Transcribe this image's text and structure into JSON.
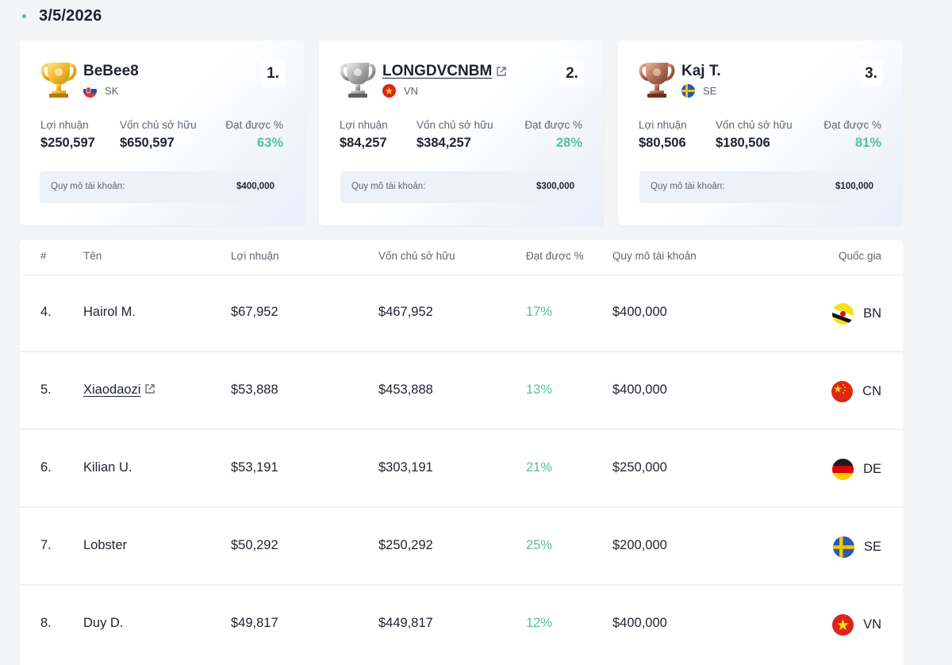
{
  "date": "3/5/2026",
  "podium": [
    {
      "rank": "1.",
      "name": "BeBee8",
      "country": "SK",
      "has_link": false,
      "trophy": "gold-trophy-icon",
      "profit_label": "Lợi nhuận",
      "profit": "$250,597",
      "equity_label": "Vốn chủ sở hữu",
      "equity": "$650,597",
      "gain_label": "Đạt được %",
      "gain": "63%",
      "account_label": "Quy mô tài khoản:",
      "account": "$400,000"
    },
    {
      "rank": "2.",
      "name": "LONGDVCNBM",
      "country": "VN",
      "has_link": true,
      "trophy": "silver-trophy-icon",
      "profit_label": "Lợi nhuận",
      "profit": "$84,257",
      "equity_label": "Vốn chủ sở hữu",
      "equity": "$384,257",
      "gain_label": "Đạt được %",
      "gain": "28%",
      "account_label": "Quy mô tài khoản:",
      "account": "$300,000"
    },
    {
      "rank": "3.",
      "name": "Kaj T.",
      "country": "SE",
      "has_link": false,
      "trophy": "bronze-trophy-icon",
      "profit_label": "Lợi nhuận",
      "profit": "$80,506",
      "equity_label": "Vốn chủ sở hữu",
      "equity": "$180,506",
      "gain_label": "Đạt được %",
      "gain": "81%",
      "account_label": "Quy mô tài khoản:",
      "account": "$100,000"
    }
  ],
  "table": {
    "headers": {
      "rank": "#",
      "name": "Tên",
      "profit": "Lợi nhuận",
      "equity": "Vốn chủ sở hữu",
      "gain": "Đạt được %",
      "account": "Quy mô tài khoản",
      "country": "Quốc gia"
    },
    "rows": [
      {
        "rank": "4.",
        "name": "Hairol M.",
        "has_link": false,
        "profit": "$67,952",
        "equity": "$467,952",
        "gain": "17%",
        "account": "$400,000",
        "country": "BN"
      },
      {
        "rank": "5.",
        "name": "Xiaodaozi",
        "has_link": true,
        "profit": "$53,888",
        "equity": "$453,888",
        "gain": "13%",
        "account": "$400,000",
        "country": "CN"
      },
      {
        "rank": "6.",
        "name": "Kilian U.",
        "has_link": false,
        "profit": "$53,191",
        "equity": "$303,191",
        "gain": "21%",
        "account": "$250,000",
        "country": "DE"
      },
      {
        "rank": "7.",
        "name": "Lobster",
        "has_link": false,
        "profit": "$50,292",
        "equity": "$250,292",
        "gain": "25%",
        "account": "$200,000",
        "country": "SE"
      },
      {
        "rank": "8.",
        "name": "Duy D.",
        "has_link": false,
        "profit": "$49,817",
        "equity": "$449,817",
        "gain": "12%",
        "account": "$400,000",
        "country": "VN"
      }
    ]
  },
  "colors": {
    "accent_green": "#52c2a0",
    "text_primary": "#1f2330",
    "text_muted": "#5f6571",
    "background": "#f4f5f7"
  }
}
